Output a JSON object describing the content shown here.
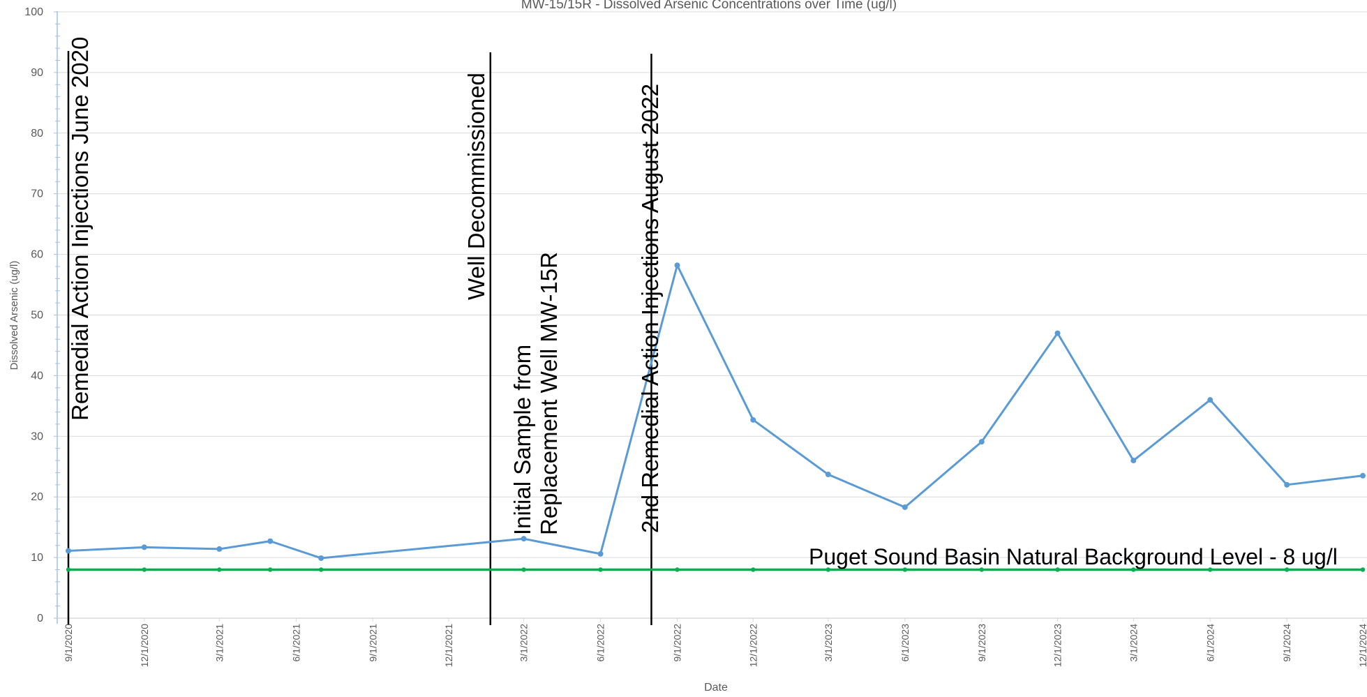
{
  "chart_data": {
    "type": "line",
    "title": "MW-15/15R - Dissolved Arsenic Concentrations over Time (ug/l)",
    "xlabel": "Date",
    "ylabel": "Dissolved Arsenic (ug/l)",
    "ylim": [
      0,
      100
    ],
    "y_ticks": [
      0,
      10,
      20,
      30,
      40,
      50,
      60,
      70,
      80,
      90,
      100
    ],
    "x_range": [
      "2020-09-01",
      "2024-12-01"
    ],
    "x_ticks": [
      {
        "date": "2020-09-01",
        "label": "9/1/2020"
      },
      {
        "date": "2020-12-01",
        "label": "12/1/2020"
      },
      {
        "date": "2021-03-01",
        "label": "3/1/2021"
      },
      {
        "date": "2021-06-01",
        "label": "6/1/2021"
      },
      {
        "date": "2021-09-01",
        "label": "9/1/2021"
      },
      {
        "date": "2021-12-01",
        "label": "12/1/2021"
      },
      {
        "date": "2022-03-01",
        "label": "3/1/2022"
      },
      {
        "date": "2022-06-01",
        "label": "6/1/2022"
      },
      {
        "date": "2022-09-01",
        "label": "9/1/2022"
      },
      {
        "date": "2022-12-01",
        "label": "12/1/2022"
      },
      {
        "date": "2023-03-01",
        "label": "3/1/2023"
      },
      {
        "date": "2023-06-01",
        "label": "6/1/2023"
      },
      {
        "date": "2023-09-01",
        "label": "9/1/2023"
      },
      {
        "date": "2023-12-01",
        "label": "12/1/2023"
      },
      {
        "date": "2024-03-01",
        "label": "3/1/2024"
      },
      {
        "date": "2024-06-01",
        "label": "6/1/2024"
      },
      {
        "date": "2024-09-01",
        "label": "9/1/2024"
      },
      {
        "date": "2024-12-01",
        "label": "12/1/2024"
      }
    ],
    "grid": true,
    "series": [
      {
        "color": "#5b9bd5",
        "points": [
          {
            "x": "2020-09-01",
            "y": 11.1
          },
          {
            "x": "2020-12-01",
            "y": 11.7
          },
          {
            "x": "2021-03-01",
            "y": 11.4
          },
          {
            "x": "2021-05-01",
            "y": 12.7
          },
          {
            "x": "2021-07-01",
            "y": 9.9
          },
          {
            "x": "2022-03-01",
            "y": 13.1
          },
          {
            "x": "2022-06-01",
            "y": 10.6
          },
          {
            "x": "2022-09-01",
            "y": 58.2
          },
          {
            "x": "2022-12-01",
            "y": 32.7
          },
          {
            "x": "2023-03-01",
            "y": 23.7
          },
          {
            "x": "2023-06-01",
            "y": 18.3
          },
          {
            "x": "2023-09-01",
            "y": 29.1
          },
          {
            "x": "2023-12-01",
            "y": 47.0
          },
          {
            "x": "2024-03-01",
            "y": 26.0
          },
          {
            "x": "2024-06-01",
            "y": 36.0
          },
          {
            "x": "2024-09-01",
            "y": 22.0
          },
          {
            "x": "2024-12-01",
            "y": 23.5
          }
        ]
      },
      {
        "name": "Puget Sound Basin Natural Background Level - 8 ug/l",
        "color": "#00b050",
        "points": [
          {
            "x": "2020-09-01",
            "y": 8
          },
          {
            "x": "2020-12-01",
            "y": 8
          },
          {
            "x": "2021-03-01",
            "y": 8
          },
          {
            "x": "2021-05-01",
            "y": 8
          },
          {
            "x": "2021-07-01",
            "y": 8
          },
          {
            "x": "2022-03-01",
            "y": 8
          },
          {
            "x": "2022-06-01",
            "y": 8
          },
          {
            "x": "2022-09-01",
            "y": 8
          },
          {
            "x": "2022-12-01",
            "y": 8
          },
          {
            "x": "2023-03-01",
            "y": 8
          },
          {
            "x": "2023-06-01",
            "y": 8
          },
          {
            "x": "2023-09-01",
            "y": 8
          },
          {
            "x": "2023-12-01",
            "y": 8
          },
          {
            "x": "2024-03-01",
            "y": 8
          },
          {
            "x": "2024-06-01",
            "y": 8
          },
          {
            "x": "2024-09-01",
            "y": 8
          },
          {
            "x": "2024-12-01",
            "y": 8
          }
        ]
      }
    ],
    "annotations": [
      {
        "x": "2020-09-01",
        "lines": [
          "Remedial Action Injections June 2020"
        ]
      },
      {
        "x": "2022-01-20",
        "lines": [
          "Well Decommissioned"
        ]
      },
      {
        "x": "2022-03-01",
        "lines": [
          "Initial Sample from",
          "Replacement Well MW-15R"
        ]
      },
      {
        "x": "2022-08-01",
        "lines": [
          "2nd Remedial Action Injections    August 2022"
        ]
      }
    ],
    "background_label": {
      "text": "Puget Sound Basin Natural Background Level - 8 ug/l",
      "x": "2023-03-01",
      "y": 8
    }
  }
}
